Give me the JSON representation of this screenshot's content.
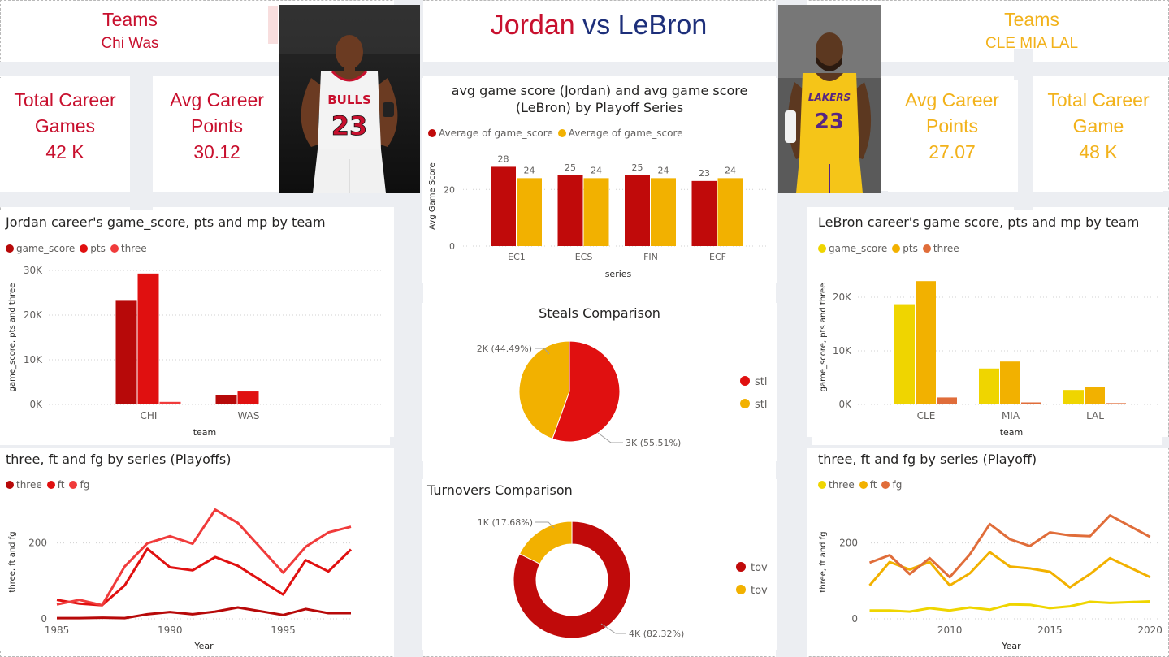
{
  "colors": {
    "jordan_dark": "#b70909",
    "jordan_mid": "#e01010",
    "jordan_light": "#f03b3b",
    "jordan_text": "#c8102e",
    "lebron_yellow": "#efd500",
    "lebron_gold": "#f2b100",
    "lebron_orange": "#e06d3a",
    "lebron_text": "#f2b21b",
    "lebron_navy": "#1d2f7a"
  },
  "header": {
    "title_jordan": "Jordan",
    "title_vs": "vs",
    "title_lebron": "LeBron"
  },
  "jordan": {
    "teams_label": "Teams",
    "teams_value": "Chi Was",
    "games_label_1": "Total Career",
    "games_label_2": "Games",
    "games_value": "42 K",
    "points_label_1": "Avg Career",
    "points_label_2": "Points",
    "points_value": "30.12"
  },
  "lebron": {
    "teams_label": "Teams",
    "teams_value": "CLE MIA LAL",
    "points_label_1": "Avg Career",
    "points_label_2": "Points",
    "points_value": "27.07",
    "games_label_1": "Total Career",
    "games_label_2": "Game",
    "games_value": "48 K"
  },
  "visuals": {
    "jordan_team": {
      "title": "Jordan career's game_score, pts and mp by team",
      "legend": [
        "game_score",
        "pts",
        "three"
      ],
      "xlabel": "team",
      "ylabel": "game_score, pts and three",
      "ticks": [
        "0K",
        "10K",
        "20K",
        "30K"
      ]
    },
    "jordan_series": {
      "title": "three, ft and fg by series (Playoffs)",
      "legend": [
        "three",
        "ft",
        "fg"
      ],
      "xlabel": "Year",
      "ylabel": "three, ft and fg",
      "yticks": [
        "0",
        "200"
      ],
      "xticks": [
        "1985",
        "1990",
        "1995"
      ]
    },
    "avg_game": {
      "title_1": "avg game score (Jordan) and avg game score",
      "title_2": "(LeBron) by Playoff Series",
      "legend": [
        "Average of game_score",
        "Average of game_score"
      ],
      "xlabel": "series",
      "ylabel": "Avg Game Score",
      "yticks": [
        "0",
        "20"
      ]
    },
    "steals": {
      "title": "Steals Comparison",
      "legend": [
        "stl",
        "stl"
      ],
      "label_gold": "2K (44.49%)",
      "label_red": "3K (55.51%)"
    },
    "turnovers": {
      "title": "Turnovers Comparison",
      "legend": [
        "tov",
        "tov"
      ],
      "label_gold": "1K (17.68%)",
      "label_red": "4K (82.32%)"
    },
    "lebron_team": {
      "title": "LeBron career's game score, pts and mp by team",
      "legend": [
        "game_score",
        "pts",
        "three"
      ],
      "xlabel": "team",
      "ylabel": "game_score, pts and three",
      "ticks": [
        "0K",
        "10K",
        "20K"
      ]
    },
    "lebron_series": {
      "title": "three, ft and fg by series (Playoff)",
      "legend": [
        "three",
        "ft",
        "fg"
      ],
      "xlabel": "Year",
      "ylabel": "three, ft and fg",
      "yticks": [
        "0",
        "200"
      ],
      "xticks": [
        "2010",
        "2015",
        "2020"
      ]
    }
  },
  "chart_data": [
    {
      "type": "bar",
      "id": "jordan_team",
      "title": "Jordan career's game_score, pts and mp by team",
      "categories": [
        "CHI",
        "WAS"
      ],
      "series": [
        {
          "name": "game_score",
          "values": [
            23200,
            2100
          ]
        },
        {
          "name": "pts",
          "values": [
            29300,
            2900
          ]
        },
        {
          "name": "three",
          "values": [
            580,
            60
          ]
        }
      ],
      "xlabel": "team",
      "ylabel": "game_score, pts and three",
      "ylim": [
        0,
        30000
      ]
    },
    {
      "type": "bar",
      "id": "avg_game",
      "title": "avg game score (Jordan) and avg game score (LeBron) by Playoff Series",
      "categories": [
        "EC1",
        "ECS",
        "FIN",
        "ECF"
      ],
      "series": [
        {
          "name": "Average of game_score",
          "values": [
            28,
            25,
            25,
            23
          ]
        },
        {
          "name": "Average of game_score",
          "values": [
            24,
            24,
            24,
            24
          ]
        }
      ],
      "xlabel": "series",
      "ylabel": "Avg Game Score",
      "ylim": [
        0,
        30
      ]
    },
    {
      "type": "pie",
      "id": "steals",
      "title": "Steals Comparison",
      "labels": [
        "stl",
        "stl"
      ],
      "values": [
        44.49,
        55.51
      ],
      "value_labels": [
        "2K (44.49%)",
        "3K (55.51%)"
      ]
    },
    {
      "type": "pie",
      "id": "turnovers",
      "title": "Turnovers Comparison",
      "donut": true,
      "labels": [
        "tov",
        "tov"
      ],
      "values": [
        17.68,
        82.32
      ],
      "value_labels": [
        "1K (17.68%)",
        "4K (82.32%)"
      ]
    },
    {
      "type": "bar",
      "id": "lebron_team",
      "title": "LeBron career's game score, pts and mp by team",
      "categories": [
        "CLE",
        "MIA",
        "LAL"
      ],
      "series": [
        {
          "name": "game_score",
          "values": [
            18700,
            6700,
            2700
          ]
        },
        {
          "name": "pts",
          "values": [
            23000,
            8000,
            3300
          ]
        },
        {
          "name": "three",
          "values": [
            1300,
            380,
            250
          ]
        }
      ],
      "xlabel": "team",
      "ylabel": "game_score, pts and three",
      "ylim": [
        0,
        25000
      ]
    },
    {
      "type": "line",
      "id": "jordan_series",
      "title": "three, ft and fg by series (Playoffs)",
      "x": [
        1985,
        1986,
        1987,
        1988,
        1989,
        1990,
        1991,
        1992,
        1993,
        1995,
        1996,
        1997,
        1998
      ],
      "series": [
        {
          "name": "three",
          "values": [
            2,
            2,
            3,
            2,
            12,
            18,
            12,
            19,
            30,
            10,
            26,
            15,
            15
          ]
        },
        {
          "name": "ft",
          "values": [
            50,
            40,
            36,
            88,
            185,
            136,
            128,
            163,
            140,
            64,
            155,
            125,
            183
          ]
        },
        {
          "name": "fg",
          "values": [
            38,
            50,
            36,
            138,
            199,
            218,
            198,
            288,
            253,
            122,
            190,
            228,
            243
          ]
        }
      ],
      "xlabel": "Year",
      "ylabel": "three, ft and fg",
      "ylim": [
        0,
        300
      ],
      "xlim": [
        1985,
        1998
      ]
    },
    {
      "type": "line",
      "id": "lebron_series",
      "title": "three, ft and fg by series (Playoff)",
      "x": [
        2006,
        2007,
        2008,
        2009,
        2010,
        2011,
        2012,
        2013,
        2014,
        2015,
        2016,
        2017,
        2018,
        2020
      ],
      "series": [
        {
          "name": "three",
          "values": [
            22,
            22,
            19,
            28,
            22,
            30,
            24,
            38,
            37,
            28,
            33,
            45,
            42,
            46
          ]
        },
        {
          "name": "ft",
          "values": [
            88,
            150,
            130,
            150,
            88,
            120,
            176,
            138,
            133,
            124,
            83,
            118,
            160,
            110
          ]
        },
        {
          "name": "fg",
          "values": [
            148,
            168,
            118,
            160,
            110,
            170,
            250,
            210,
            192,
            228,
            220,
            218,
            273,
            216
          ]
        }
      ],
      "xlabel": "Year",
      "ylabel": "three, ft and fg",
      "ylim": [
        0,
        300
      ],
      "xlim": [
        2005.9,
        2020.5
      ]
    }
  ]
}
